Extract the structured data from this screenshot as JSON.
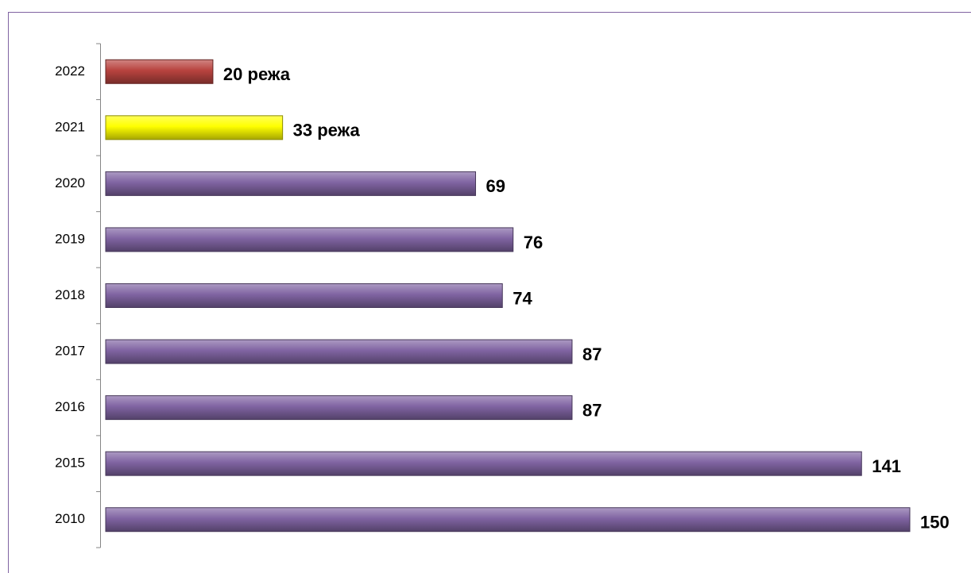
{
  "chart_data": {
    "type": "bar",
    "orientation": "horizontal",
    "categories": [
      "2022",
      "2021",
      "2020",
      "2019",
      "2018",
      "2017",
      "2016",
      "2015",
      "2010"
    ],
    "values": [
      20,
      33,
      69,
      76,
      74,
      87,
      87,
      141,
      150
    ],
    "value_labels": [
      "20 режа",
      "33 режа",
      "69",
      "76",
      "74",
      "87",
      "87",
      "141",
      "150"
    ],
    "colors": [
      "#b8433f",
      "#ffff00",
      "#8064a2",
      "#8064a2",
      "#8064a2",
      "#8064a2",
      "#8064a2",
      "#8064a2",
      "#8064a2"
    ]
  }
}
